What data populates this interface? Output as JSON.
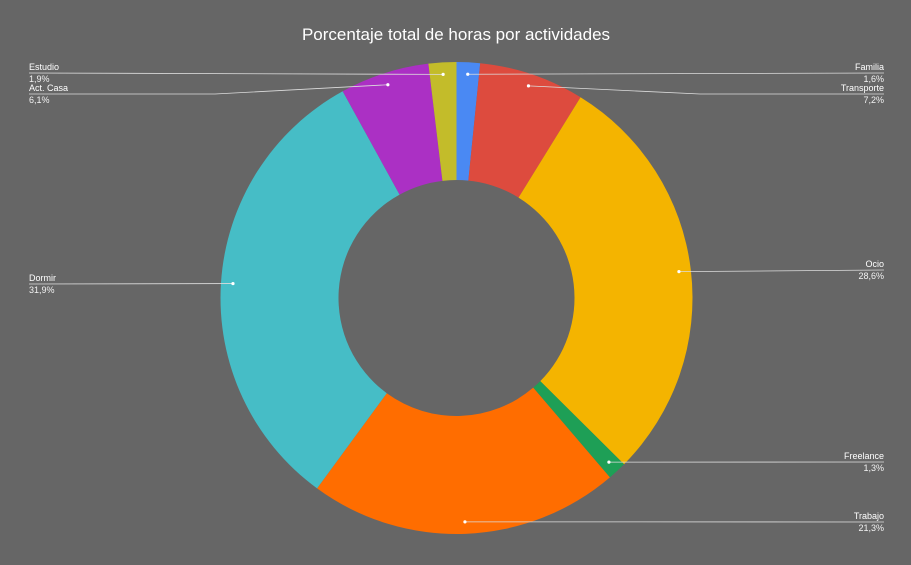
{
  "chart_data": {
    "type": "pie",
    "variant": "donut",
    "title": "Porcentaje total de horas por actividades",
    "start_angle_deg": 0,
    "direction": "clockwise",
    "slices": [
      {
        "label": "Familia",
        "value": 1.6,
        "value_label": "1,6%",
        "color": "#4a89f3",
        "label_side": "right"
      },
      {
        "label": "Transporte",
        "value": 7.2,
        "value_label": "7,2%",
        "color": "#dd4b3e",
        "label_side": "right"
      },
      {
        "label": "Ocio",
        "value": 28.6,
        "value_label": "28,6%",
        "color": "#f4b400",
        "label_side": "right"
      },
      {
        "label": "Freelance",
        "value": 1.3,
        "value_label": "1,3%",
        "color": "#1e9f56",
        "label_side": "right"
      },
      {
        "label": "Trabajo",
        "value": 21.3,
        "value_label": "21,3%",
        "color": "#ff6d00",
        "label_side": "right"
      },
      {
        "label": "Dormir",
        "value": 31.9,
        "value_label": "31,9%",
        "color": "#46bdc6",
        "label_side": "left"
      },
      {
        "label": "Act. Casa",
        "value": 6.1,
        "value_label": "6,1%",
        "color": "#ab30c4",
        "label_side": "left"
      },
      {
        "label": "Estudio",
        "value": 1.9,
        "value_label": "1,9%",
        "color": "#c3bc2a",
        "label_side": "left"
      }
    ],
    "legend": "none",
    "background": "#666666"
  }
}
